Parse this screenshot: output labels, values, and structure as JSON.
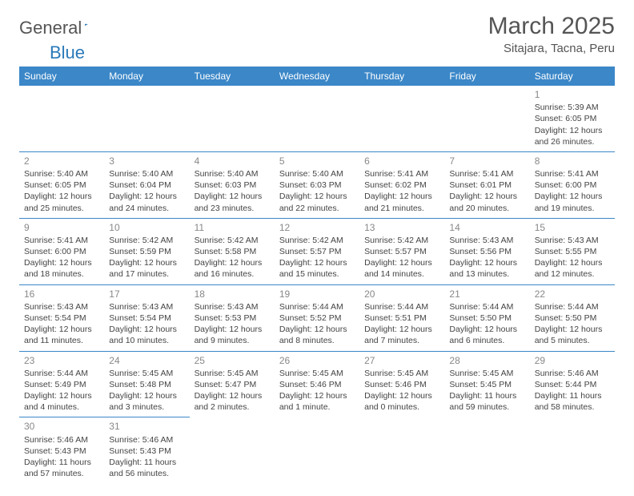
{
  "logo": {
    "text1": "General",
    "text2": "Blue"
  },
  "title": "March 2025",
  "location": "Sitajara, Tacna, Peru",
  "colors": {
    "header_bg": "#3b87c8",
    "header_text": "#ffffff",
    "border": "#3b87c8",
    "logo_gray": "#555555",
    "logo_blue": "#2a7ab9"
  },
  "weekdays": [
    "Sunday",
    "Monday",
    "Tuesday",
    "Wednesday",
    "Thursday",
    "Friday",
    "Saturday"
  ],
  "weeks": [
    [
      null,
      null,
      null,
      null,
      null,
      null,
      {
        "n": "1",
        "sr": "Sunrise: 5:39 AM",
        "ss": "Sunset: 6:05 PM",
        "dl": "Daylight: 12 hours and 26 minutes."
      }
    ],
    [
      {
        "n": "2",
        "sr": "Sunrise: 5:40 AM",
        "ss": "Sunset: 6:05 PM",
        "dl": "Daylight: 12 hours and 25 minutes."
      },
      {
        "n": "3",
        "sr": "Sunrise: 5:40 AM",
        "ss": "Sunset: 6:04 PM",
        "dl": "Daylight: 12 hours and 24 minutes."
      },
      {
        "n": "4",
        "sr": "Sunrise: 5:40 AM",
        "ss": "Sunset: 6:03 PM",
        "dl": "Daylight: 12 hours and 23 minutes."
      },
      {
        "n": "5",
        "sr": "Sunrise: 5:40 AM",
        "ss": "Sunset: 6:03 PM",
        "dl": "Daylight: 12 hours and 22 minutes."
      },
      {
        "n": "6",
        "sr": "Sunrise: 5:41 AM",
        "ss": "Sunset: 6:02 PM",
        "dl": "Daylight: 12 hours and 21 minutes."
      },
      {
        "n": "7",
        "sr": "Sunrise: 5:41 AM",
        "ss": "Sunset: 6:01 PM",
        "dl": "Daylight: 12 hours and 20 minutes."
      },
      {
        "n": "8",
        "sr": "Sunrise: 5:41 AM",
        "ss": "Sunset: 6:00 PM",
        "dl": "Daylight: 12 hours and 19 minutes."
      }
    ],
    [
      {
        "n": "9",
        "sr": "Sunrise: 5:41 AM",
        "ss": "Sunset: 6:00 PM",
        "dl": "Daylight: 12 hours and 18 minutes."
      },
      {
        "n": "10",
        "sr": "Sunrise: 5:42 AM",
        "ss": "Sunset: 5:59 PM",
        "dl": "Daylight: 12 hours and 17 minutes."
      },
      {
        "n": "11",
        "sr": "Sunrise: 5:42 AM",
        "ss": "Sunset: 5:58 PM",
        "dl": "Daylight: 12 hours and 16 minutes."
      },
      {
        "n": "12",
        "sr": "Sunrise: 5:42 AM",
        "ss": "Sunset: 5:57 PM",
        "dl": "Daylight: 12 hours and 15 minutes."
      },
      {
        "n": "13",
        "sr": "Sunrise: 5:42 AM",
        "ss": "Sunset: 5:57 PM",
        "dl": "Daylight: 12 hours and 14 minutes."
      },
      {
        "n": "14",
        "sr": "Sunrise: 5:43 AM",
        "ss": "Sunset: 5:56 PM",
        "dl": "Daylight: 12 hours and 13 minutes."
      },
      {
        "n": "15",
        "sr": "Sunrise: 5:43 AM",
        "ss": "Sunset: 5:55 PM",
        "dl": "Daylight: 12 hours and 12 minutes."
      }
    ],
    [
      {
        "n": "16",
        "sr": "Sunrise: 5:43 AM",
        "ss": "Sunset: 5:54 PM",
        "dl": "Daylight: 12 hours and 11 minutes."
      },
      {
        "n": "17",
        "sr": "Sunrise: 5:43 AM",
        "ss": "Sunset: 5:54 PM",
        "dl": "Daylight: 12 hours and 10 minutes."
      },
      {
        "n": "18",
        "sr": "Sunrise: 5:43 AM",
        "ss": "Sunset: 5:53 PM",
        "dl": "Daylight: 12 hours and 9 minutes."
      },
      {
        "n": "19",
        "sr": "Sunrise: 5:44 AM",
        "ss": "Sunset: 5:52 PM",
        "dl": "Daylight: 12 hours and 8 minutes."
      },
      {
        "n": "20",
        "sr": "Sunrise: 5:44 AM",
        "ss": "Sunset: 5:51 PM",
        "dl": "Daylight: 12 hours and 7 minutes."
      },
      {
        "n": "21",
        "sr": "Sunrise: 5:44 AM",
        "ss": "Sunset: 5:50 PM",
        "dl": "Daylight: 12 hours and 6 minutes."
      },
      {
        "n": "22",
        "sr": "Sunrise: 5:44 AM",
        "ss": "Sunset: 5:50 PM",
        "dl": "Daylight: 12 hours and 5 minutes."
      }
    ],
    [
      {
        "n": "23",
        "sr": "Sunrise: 5:44 AM",
        "ss": "Sunset: 5:49 PM",
        "dl": "Daylight: 12 hours and 4 minutes."
      },
      {
        "n": "24",
        "sr": "Sunrise: 5:45 AM",
        "ss": "Sunset: 5:48 PM",
        "dl": "Daylight: 12 hours and 3 minutes."
      },
      {
        "n": "25",
        "sr": "Sunrise: 5:45 AM",
        "ss": "Sunset: 5:47 PM",
        "dl": "Daylight: 12 hours and 2 minutes."
      },
      {
        "n": "26",
        "sr": "Sunrise: 5:45 AM",
        "ss": "Sunset: 5:46 PM",
        "dl": "Daylight: 12 hours and 1 minute."
      },
      {
        "n": "27",
        "sr": "Sunrise: 5:45 AM",
        "ss": "Sunset: 5:46 PM",
        "dl": "Daylight: 12 hours and 0 minutes."
      },
      {
        "n": "28",
        "sr": "Sunrise: 5:45 AM",
        "ss": "Sunset: 5:45 PM",
        "dl": "Daylight: 11 hours and 59 minutes."
      },
      {
        "n": "29",
        "sr": "Sunrise: 5:46 AM",
        "ss": "Sunset: 5:44 PM",
        "dl": "Daylight: 11 hours and 58 minutes."
      }
    ],
    [
      {
        "n": "30",
        "sr": "Sunrise: 5:46 AM",
        "ss": "Sunset: 5:43 PM",
        "dl": "Daylight: 11 hours and 57 minutes."
      },
      {
        "n": "31",
        "sr": "Sunrise: 5:46 AM",
        "ss": "Sunset: 5:43 PM",
        "dl": "Daylight: 11 hours and 56 minutes."
      },
      null,
      null,
      null,
      null,
      null
    ]
  ]
}
